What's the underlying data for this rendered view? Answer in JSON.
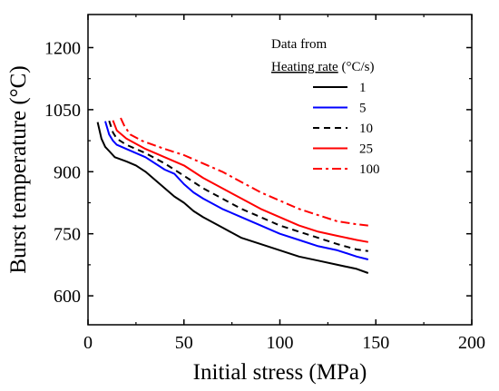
{
  "chart_data": {
    "type": "line",
    "xlabel": "Initial stress (MPa)",
    "ylabel": "Burst temperature (°C)",
    "xlim": [
      0,
      200
    ],
    "ylim": [
      530,
      1280
    ],
    "xticks": [
      0,
      50,
      100,
      150,
      200
    ],
    "yticks": [
      600,
      750,
      900,
      1050,
      1200
    ],
    "grid": false,
    "legend": {
      "placement": "top-right",
      "title_line1": "Data from",
      "title_line2": "Heating rate",
      "title_unit": " (°C/s)"
    },
    "series": [
      {
        "name": "1",
        "color": "#000000",
        "dash": "solid",
        "x": [
          5,
          7,
          9,
          11,
          14,
          20,
          25,
          30,
          35,
          40,
          45,
          50,
          55,
          60,
          70,
          80,
          90,
          100,
          110,
          120,
          130,
          140,
          146
        ],
        "y": [
          1020,
          980,
          960,
          950,
          935,
          925,
          915,
          900,
          880,
          860,
          840,
          825,
          805,
          790,
          765,
          740,
          725,
          710,
          695,
          685,
          675,
          665,
          655
        ]
      },
      {
        "name": "5",
        "color": "#0000ff",
        "dash": "solid",
        "x": [
          9,
          11,
          13,
          15,
          20,
          30,
          40,
          45,
          50,
          55,
          60,
          70,
          80,
          90,
          100,
          110,
          120,
          130,
          140,
          146
        ],
        "y": [
          1022,
          990,
          975,
          965,
          955,
          935,
          905,
          895,
          870,
          850,
          835,
          810,
          790,
          770,
          750,
          735,
          720,
          710,
          695,
          688
        ]
      },
      {
        "name": "10",
        "color": "#000000",
        "dash": "dashed",
        "x": [
          11,
          13,
          15,
          20,
          30,
          40,
          50,
          60,
          70,
          80,
          90,
          100,
          110,
          120,
          130,
          140,
          146
        ],
        "y": [
          1023,
          995,
          980,
          965,
          945,
          920,
          890,
          860,
          835,
          810,
          790,
          770,
          755,
          740,
          725,
          712,
          708
        ]
      },
      {
        "name": "25",
        "color": "#ff0000",
        "dash": "solid",
        "x": [
          13,
          15,
          20,
          30,
          40,
          50,
          60,
          70,
          80,
          90,
          100,
          110,
          120,
          130,
          140,
          146
        ],
        "y": [
          1024,
          1000,
          980,
          955,
          935,
          915,
          885,
          860,
          835,
          810,
          790,
          770,
          755,
          745,
          735,
          730
        ]
      },
      {
        "name": "100",
        "color": "#ff0000",
        "dash": "dashdot",
        "x": [
          17,
          19,
          22,
          28,
          40,
          50,
          60,
          70,
          80,
          90,
          100,
          110,
          120,
          130,
          140,
          146
        ],
        "y": [
          1030,
          1010,
          990,
          975,
          955,
          940,
          920,
          900,
          875,
          850,
          830,
          810,
          795,
          780,
          773,
          770
        ]
      }
    ]
  }
}
